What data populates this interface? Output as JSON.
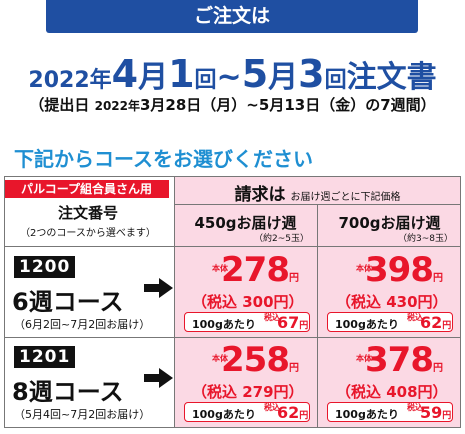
{
  "header": {
    "banner": "ご注文は",
    "title": {
      "year": "2022年",
      "m1": "4",
      "mu1": "月",
      "d1": "1",
      "ka1": "回",
      "tilde": "~",
      "m2": "5",
      "mu2": "月",
      "d2": "3",
      "ka2": "回",
      "doc": "注文書"
    },
    "subtitle": {
      "open": "（提出日 ",
      "year": "2022年",
      "range": "3月28日（月）~5月13日（金）の7週間）"
    },
    "lead": "下記からコースをお選びください"
  },
  "table": {
    "member_badge": "パルコープ組合員さん用",
    "order_no_label": "注文番号",
    "order_no_hint": "（2つのコースから選べます）",
    "billing_label": "請求は",
    "billing_note": "お届け週ごとに下記価格",
    "columns": [
      {
        "label": "450gお届け週",
        "note": "（約2~5玉）"
      },
      {
        "label": "700gお届け週",
        "note": "（約3~8玉）"
      }
    ],
    "tag_base": "本体",
    "tag_tax": "税込",
    "yen": "円",
    "per100_label": "100gあたり",
    "rows": [
      {
        "code": "1200",
        "course": "6週コース",
        "period": "（6月2回~7月2回お届け）",
        "prices": [
          {
            "base": "278",
            "taxin": "（税込 300円）",
            "per100": "67"
          },
          {
            "base": "398",
            "taxin": "（税込 430円）",
            "per100": "62"
          }
        ]
      },
      {
        "code": "1201",
        "course": "8週コース",
        "period": "（5月4回~7月2回お届け）",
        "prices": [
          {
            "base": "258",
            "taxin": "（税込 279円）",
            "per100": "62"
          },
          {
            "base": "378",
            "taxin": "（税込 408円）",
            "per100": "59"
          }
        ]
      }
    ]
  },
  "colors": {
    "brand_blue": "#1f4fa2",
    "lead_blue": "#1f8fd2",
    "price_red": "#e8162b",
    "pink_bg": "#fbd9e4"
  }
}
